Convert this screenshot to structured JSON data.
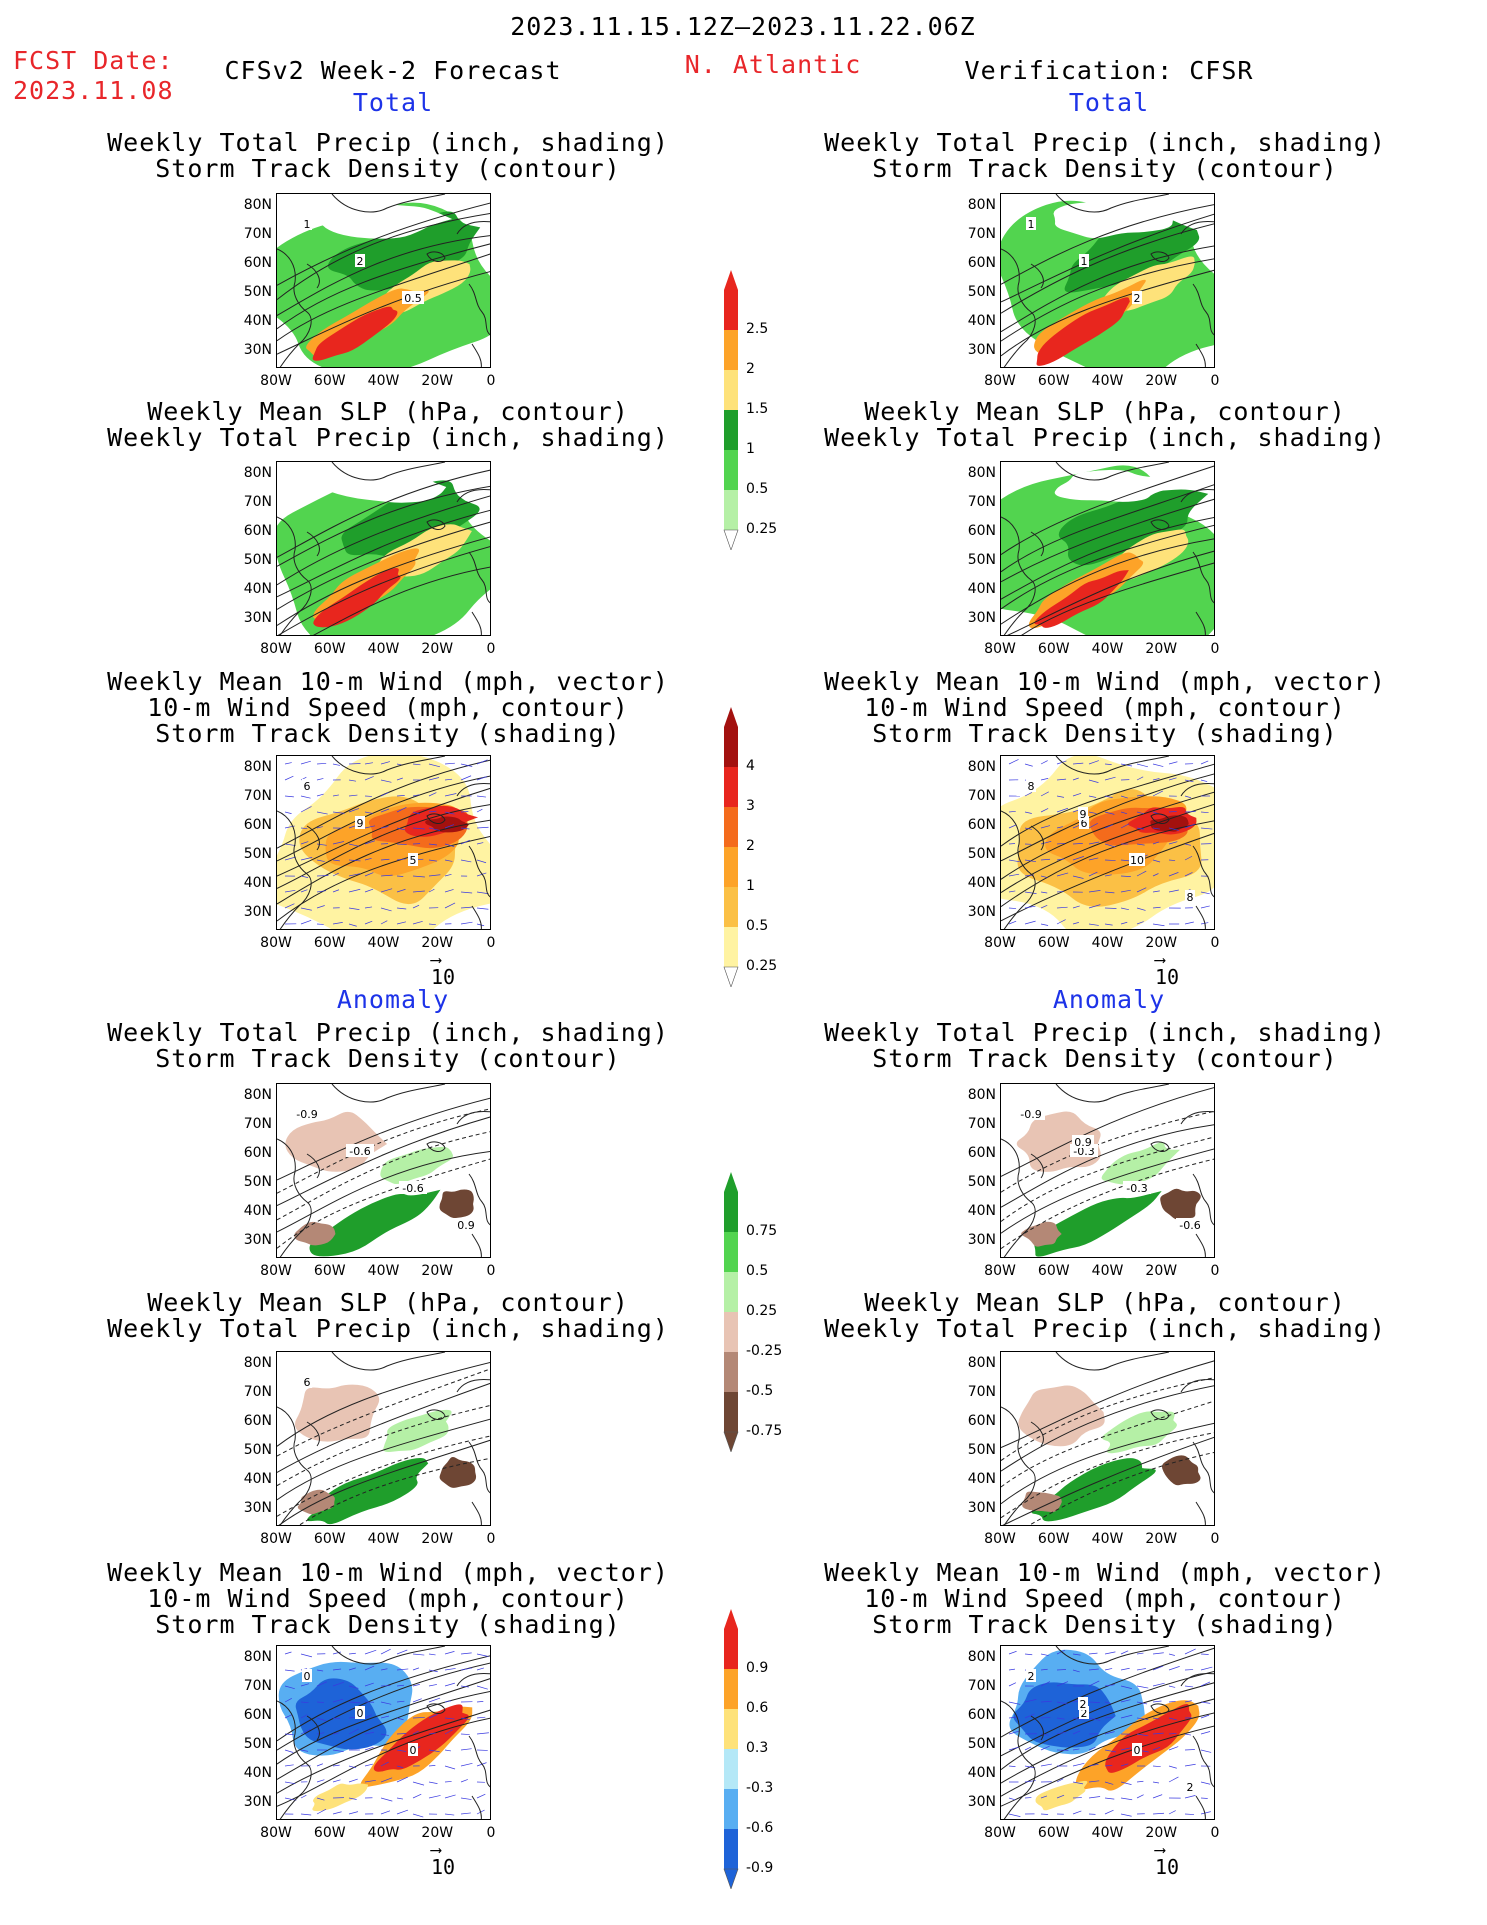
{
  "header": {
    "period": "2023.11.15.12Z–2023.11.22.06Z",
    "fcst_label": "FCST Date:",
    "fcst_date": "2023.11.08",
    "left_title": "CFSv2 Week-2 Forecast",
    "region": "N. Atlantic",
    "right_title": "Verification: CFSR"
  },
  "sections": {
    "total": "Total",
    "anomaly": "Anomaly"
  },
  "panel_titles": {
    "precip_track": [
      "Weekly Total Precip (inch, shading)",
      "Storm Track Density (contour)"
    ],
    "slp_precip": [
      "Weekly Mean SLP (hPa, contour)",
      "Weekly Total Precip (inch, shading)"
    ],
    "wind_track": [
      "Weekly Mean 10-m Wind (mph, vector)",
      "10-m Wind Speed (mph, contour)",
      "Storm Track Density (shading)"
    ]
  },
  "axes": {
    "lat_labels": [
      "80N",
      "70N",
      "60N",
      "50N",
      "40N",
      "30N"
    ],
    "lon_labels": [
      "80W",
      "60W",
      "40W",
      "20W",
      "0"
    ]
  },
  "vector_ref": "10",
  "colorbars": {
    "precip_total": {
      "labels": [
        "2.5",
        "2",
        "1.5",
        "1",
        "0.5",
        "0.25"
      ],
      "colors": [
        "#e8261e",
        "#fda328",
        "#fee27a",
        "#1f9e2b",
        "#52d44f",
        "#b5f0a6"
      ]
    },
    "track_total": {
      "labels": [
        "4",
        "3",
        "2",
        "1",
        "0.5",
        "0.25"
      ],
      "colors": [
        "#a3110f",
        "#e8261e",
        "#f46b1c",
        "#fda328",
        "#fbc045",
        "#fff3a2"
      ]
    },
    "precip_anom": {
      "labels": [
        "0.75",
        "0.5",
        "0.25",
        "-0.25",
        "-0.5",
        "-0.75"
      ],
      "colors": [
        "#1f9e2b",
        "#52d44f",
        "#b5f0a6",
        "#e8c4b4",
        "#b48876",
        "#6e4634"
      ]
    },
    "track_anom": {
      "labels": [
        "0.9",
        "0.6",
        "0.3",
        "-0.3",
        "-0.6",
        "-0.9"
      ],
      "colors": [
        "#e8261e",
        "#fda328",
        "#fee27a",
        "#b4e8f7",
        "#58aef2",
        "#1e63d8"
      ]
    }
  },
  "contour_labels": {
    "fc_precip_track": [
      "1",
      "2",
      "0.5"
    ],
    "ob_precip_track": [
      "1",
      "1",
      "2"
    ],
    "fc_wind_track": [
      "6",
      "9",
      "5"
    ],
    "ob_wind_track": [
      "8",
      "6",
      "10",
      "8",
      "9"
    ],
    "fc_precip_track_anom": [
      "-0.9",
      "-0.6",
      "-0.6",
      "0.9"
    ],
    "ob_precip_track_anom": [
      "-0.9",
      "-0.3",
      "-0.3",
      "-0.6",
      "0.9"
    ],
    "fc_slp_precip_anom": [
      "6"
    ],
    "fc_wind_track_anom": [
      "0",
      "0",
      "0"
    ],
    "ob_wind_track_anom": [
      "2",
      "2",
      "0",
      "2",
      "2"
    ]
  }
}
